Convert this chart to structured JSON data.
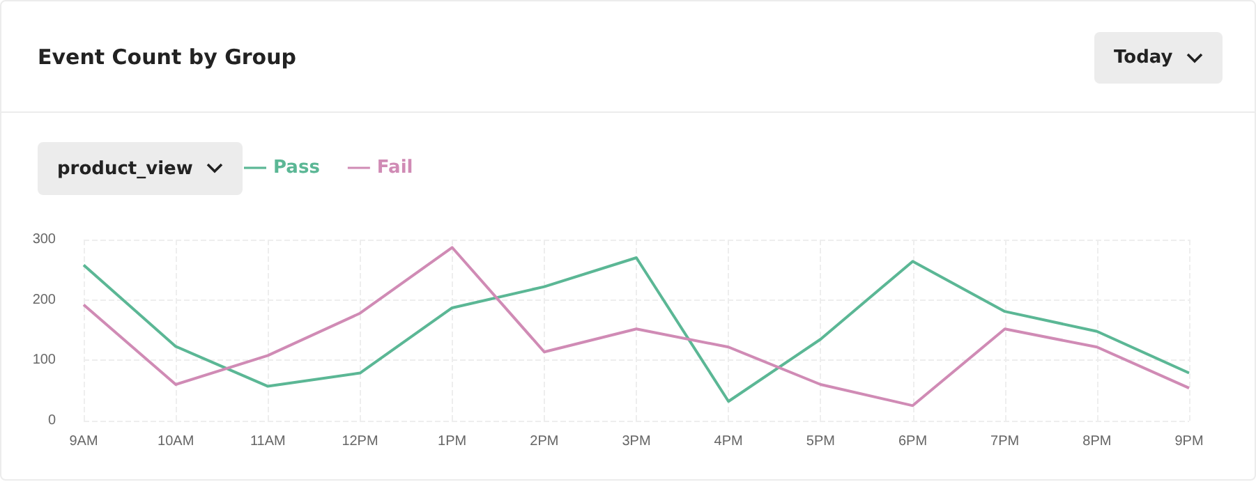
{
  "chart_data": {
    "type": "line",
    "title": "Event Count by Group",
    "annotations": [
      "Today",
      "product_view"
    ],
    "categories": [
      "9AM",
      "10AM",
      "11AM",
      "12PM",
      "1PM",
      "2PM",
      "3PM",
      "4PM",
      "5PM",
      "6PM",
      "7PM",
      "8PM",
      "9PM"
    ],
    "series": [
      {
        "name": "Pass",
        "color": "#5bb795",
        "values": [
          258,
          123,
          57,
          79,
          187,
          222,
          270,
          32,
          135,
          264,
          181,
          148,
          79
        ]
      },
      {
        "name": "Fail",
        "color": "#d08bb5",
        "values": [
          192,
          60,
          108,
          178,
          287,
          114,
          152,
          122,
          60,
          25,
          152,
          122,
          54
        ]
      }
    ],
    "ylim": [
      0,
      300
    ],
    "yticks": [
      0,
      100,
      200,
      300
    ],
    "grid": true,
    "legend": "top left",
    "marker": "none",
    "line_style": "solid"
  }
}
